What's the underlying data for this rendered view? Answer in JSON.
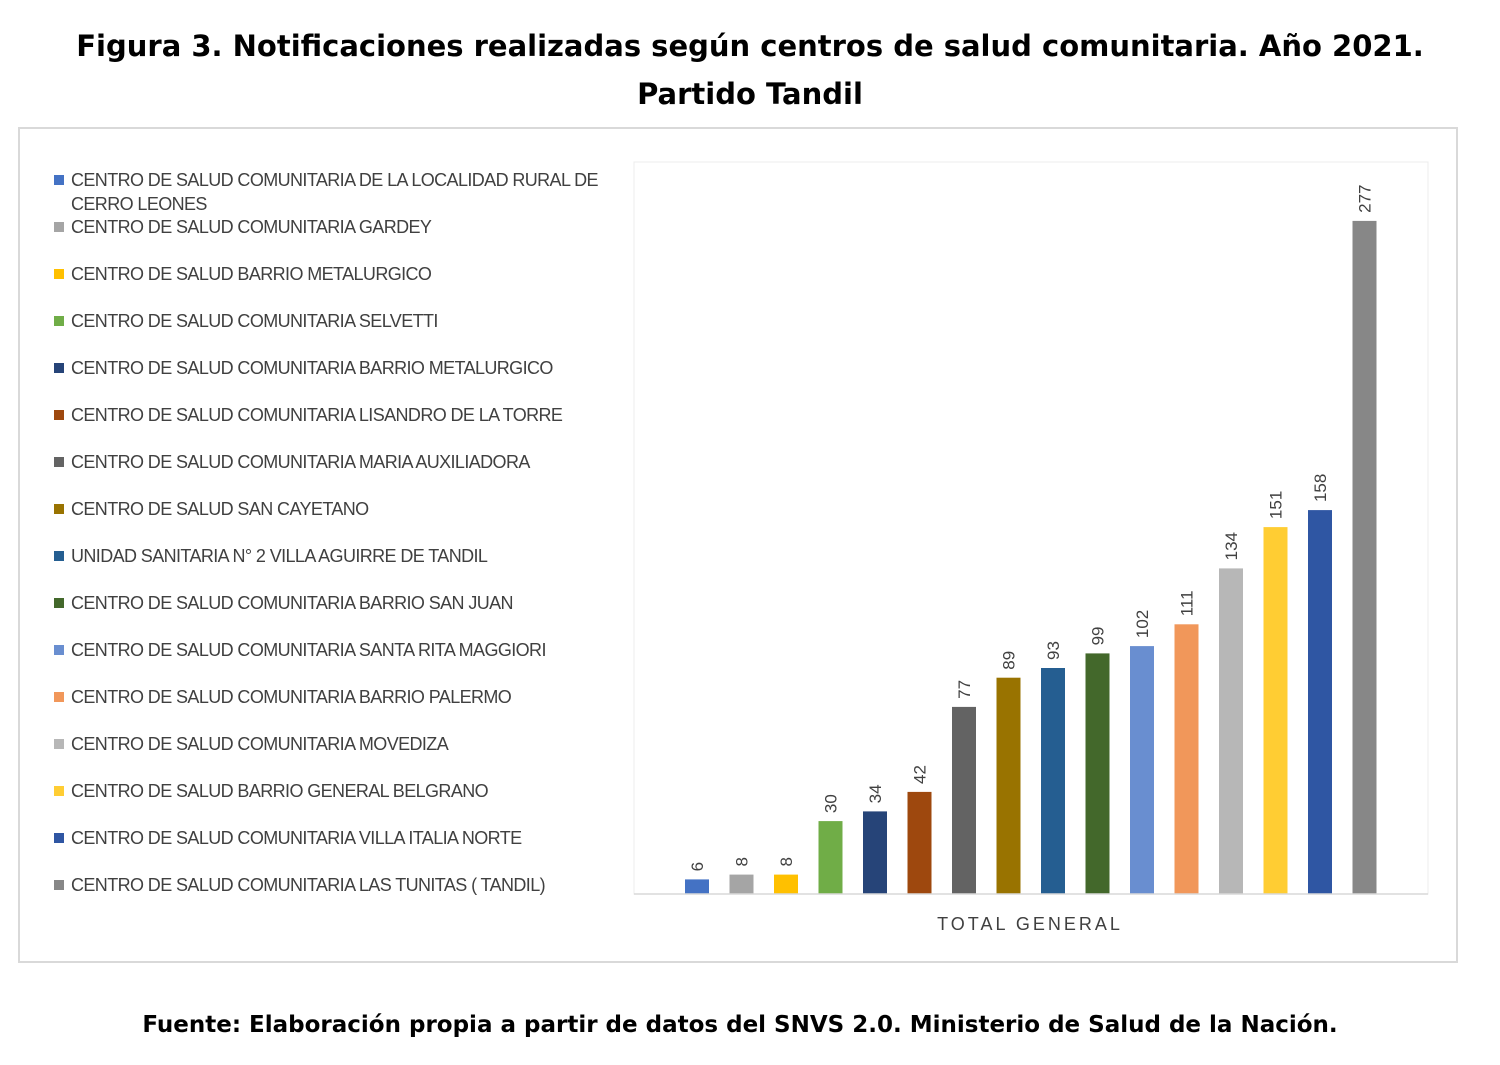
{
  "title": "Figura 3. Notificaciones realizadas según centros de salud comunitaria. Año 2021. Partido Tandil",
  "source": "Fuente: Elaboración propia a partir de datos del SNVS 2.0. Ministerio de Salud de la Nación.",
  "chart_data": {
    "type": "bar",
    "categories": [
      "TOTAL GENERAL"
    ],
    "xlabel": "",
    "ylabel": "",
    "ylim": [
      0,
      300
    ],
    "grid": false,
    "legend_position": "left",
    "data_labels": true,
    "series": [
      {
        "name": "CENTRO DE SALUD COMUNITARIA DE LA LOCALIDAD RURAL DE CERRO LEONES",
        "values": [
          6
        ],
        "color": "#4472c4"
      },
      {
        "name": "CENTRO DE  SALUD COMUNITARIA  GARDEY",
        "values": [
          8
        ],
        "color": "#a5a5a5"
      },
      {
        "name": "CENTRO DE SALUD BARRIO METALURGICO",
        "values": [
          8
        ],
        "color": "#ffc000"
      },
      {
        "name": "CENTRO DE SALUD COMUNITARIA SELVETTI",
        "values": [
          30
        ],
        "color": "#70ad47"
      },
      {
        "name": "CENTRO DE SALUD COMUNITARIA BARRIO METALURGICO",
        "values": [
          34
        ],
        "color": "#264478"
      },
      {
        "name": "CENTRO DE SALUD COMUNITARIA LISANDRO DE LA TORRE",
        "values": [
          42
        ],
        "color": "#9e480e"
      },
      {
        "name": "CENTRO DE SALUD COMUNITARIA MARIA AUXILIADORA",
        "values": [
          77
        ],
        "color": "#636363"
      },
      {
        "name": "CENTRO DE SALUD SAN CAYETANO",
        "values": [
          89
        ],
        "color": "#997300"
      },
      {
        "name": "UNIDAD SANITARIA N° 2 VILLA AGUIRRE DE TANDIL",
        "values": [
          93
        ],
        "color": "#255e91"
      },
      {
        "name": "CENTRO DE SALUD COMUNITARIA BARRIO SAN JUAN",
        "values": [
          99
        ],
        "color": "#43682b"
      },
      {
        "name": "CENTRO DE SALUD COMUNITARIA SANTA RITA MAGGIORI",
        "values": [
          102
        ],
        "color": "#698ed0"
      },
      {
        "name": "CENTRO DE SALUD COMUNITARIA BARRIO PALERMO",
        "values": [
          111
        ],
        "color": "#f1975a"
      },
      {
        "name": "CENTRO DE SALUD COMUNITARIA MOVEDIZA",
        "values": [
          134
        ],
        "color": "#b7b7b7"
      },
      {
        "name": "CENTRO DE SALUD BARRIO GENERAL BELGRANO",
        "values": [
          151
        ],
        "color": "#ffcd33"
      },
      {
        "name": "CENTRO DE SALUD COMUNITARIA  VILLA ITALIA NORTE",
        "values": [
          158
        ],
        "color": "#2f56a3"
      },
      {
        "name": "CENTRO DE SALUD COMUNITARIA LAS TUNITAS   (   TANDIL)",
        "values": [
          277
        ],
        "color": "#878787"
      }
    ]
  }
}
